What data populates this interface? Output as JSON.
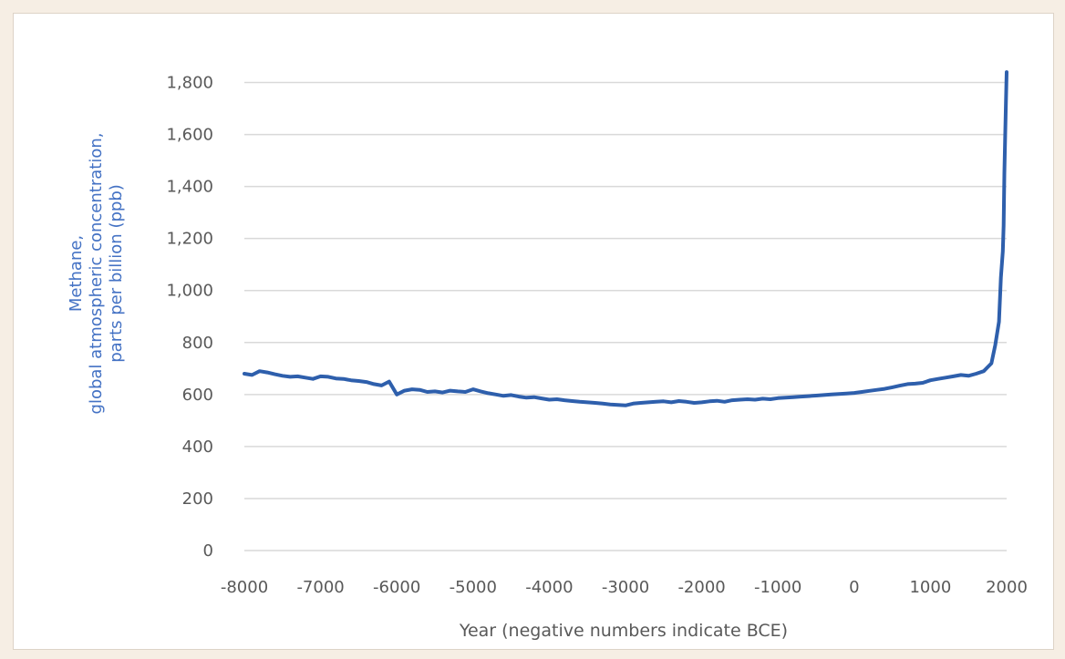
{
  "chart_data": {
    "type": "line",
    "title": "",
    "xlabel": "Year (negative numbers indicate BCE)",
    "ylabel_lines": [
      "Methane,",
      "global atmospheric concentration,",
      "parts per billion (ppb)"
    ],
    "xlim": [
      -8000,
      2000
    ],
    "ylim": [
      0,
      1900
    ],
    "x_ticks": [
      -8000,
      -7000,
      -6000,
      -5000,
      -4000,
      -3000,
      -2000,
      -1000,
      0,
      1000,
      2000
    ],
    "y_ticks": [
      0,
      200,
      400,
      600,
      800,
      1000,
      1200,
      1400,
      1600,
      1800
    ],
    "y_tick_labels": [
      "0",
      "200",
      "400",
      "600",
      "800",
      "1,000",
      "1,200",
      "1,400",
      "1,600",
      "1,800"
    ],
    "grid": "horizontal",
    "legend": "none",
    "series": [
      {
        "color": "#2e5fac",
        "x": [
          -8000,
          -7900,
          -7800,
          -7700,
          -7600,
          -7500,
          -7400,
          -7300,
          -7200,
          -7100,
          -7000,
          -6900,
          -6800,
          -6700,
          -6600,
          -6500,
          -6400,
          -6300,
          -6200,
          -6100,
          -6000,
          -5900,
          -5800,
          -5700,
          -5600,
          -5500,
          -5400,
          -5300,
          -5200,
          -5100,
          -5000,
          -4900,
          -4800,
          -4700,
          -4600,
          -4500,
          -4400,
          -4300,
          -4200,
          -4100,
          -4000,
          -3900,
          -3800,
          -3700,
          -3600,
          -3500,
          -3400,
          -3300,
          -3200,
          -3100,
          -3000,
          -2900,
          -2800,
          -2700,
          -2600,
          -2500,
          -2400,
          -2300,
          -2200,
          -2100,
          -2000,
          -1900,
          -1800,
          -1700,
          -1600,
          -1500,
          -1400,
          -1300,
          -1200,
          -1100,
          -1000,
          -900,
          -800,
          -700,
          -600,
          -500,
          -400,
          -300,
          -200,
          -100,
          0,
          100,
          200,
          300,
          400,
          500,
          600,
          700,
          800,
          900,
          1000,
          1100,
          1200,
          1300,
          1400,
          1500,
          1600,
          1700,
          1750,
          1800,
          1850,
          1900,
          1925,
          1950,
          1960,
          1970,
          1980,
          1990,
          2000
        ],
        "values": [
          680,
          675,
          690,
          685,
          678,
          672,
          668,
          670,
          665,
          660,
          670,
          668,
          662,
          660,
          655,
          652,
          648,
          640,
          635,
          650,
          600,
          615,
          620,
          618,
          610,
          612,
          608,
          615,
          612,
          610,
          620,
          612,
          605,
          600,
          595,
          598,
          592,
          588,
          590,
          585,
          580,
          582,
          578,
          575,
          572,
          570,
          568,
          565,
          562,
          560,
          558,
          565,
          568,
          570,
          572,
          574,
          570,
          575,
          572,
          568,
          570,
          574,
          576,
          572,
          578,
          580,
          582,
          580,
          584,
          582,
          586,
          588,
          590,
          592,
          594,
          596,
          598,
          600,
          602,
          604,
          606,
          610,
          614,
          618,
          622,
          628,
          634,
          640,
          642,
          645,
          655,
          660,
          665,
          670,
          675,
          672,
          680,
          690,
          705,
          720,
          790,
          880,
          1050,
          1150,
          1250,
          1450,
          1580,
          1720,
          1840
        ]
      }
    ]
  }
}
